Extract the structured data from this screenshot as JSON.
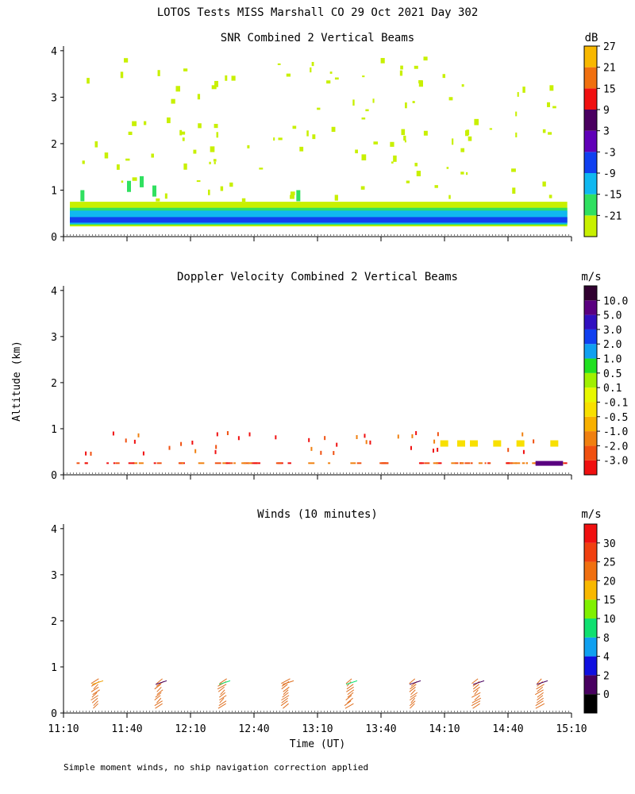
{
  "figure_title": "LOTOS Tests MISS Marshall CO  29 Oct 2021 Day 302",
  "shared_ylabel": "Altitude (km)",
  "shared_xlabel": "Time (UT)",
  "footer_note": "Simple moment winds, no ship navigation correction applied",
  "chart_data": [
    {
      "type": "heatmap",
      "title": "SNR Combined 2 Vertical Beams",
      "units": "dB",
      "x_ticks": [
        "11:10",
        "11:40",
        "12:10",
        "12:40",
        "13:10",
        "13:40",
        "14:10",
        "14:40",
        "15:10"
      ],
      "show_x_tick_labels": false,
      "xlim_minutes_utc": [
        670,
        910
      ],
      "ylim_km": [
        0,
        4.1
      ],
      "y_ticks": [
        0,
        1,
        2,
        3,
        4
      ],
      "colorbar": {
        "labels": [
          "-21",
          "-15",
          "-9",
          "-3",
          "3",
          "9",
          "15",
          "21",
          "27"
        ],
        "colors": [
          "#c8f000",
          "#30e060",
          "#10b8f0",
          "#1040f0",
          "#6000b8",
          "#4a0060",
          "#f01010",
          "#f07010",
          "#f8b800"
        ]
      },
      "layers": [
        {
          "band": "noise-top",
          "alt_km": [
            0.22,
            0.75
          ],
          "color": "#c8f000"
        },
        {
          "band": "mid",
          "alt_km": [
            0.25,
            0.62
          ],
          "color": "#30e060"
        },
        {
          "band": "strong",
          "alt_km": [
            0.27,
            0.56
          ],
          "color": "#10b8f0"
        },
        {
          "band": "peak",
          "alt_km": [
            0.3,
            0.42
          ],
          "color": "#1040f0"
        }
      ]
    },
    {
      "type": "heatmap",
      "title": "Doppler Velocity Combined 2 Vertical Beams",
      "units": "m/s",
      "x_ticks": [
        "11:10",
        "11:40",
        "12:10",
        "12:40",
        "13:10",
        "13:40",
        "14:10",
        "14:40",
        "15:10"
      ],
      "show_x_tick_labels": false,
      "xlim_minutes_utc": [
        670,
        910
      ],
      "ylim_km": [
        0,
        4.1
      ],
      "y_ticks": [
        0,
        1,
        2,
        3,
        4
      ],
      "colorbar": {
        "labels": [
          "-3.0",
          "-2.0",
          "-1.0",
          "-0.5",
          "-0.1",
          "0.1",
          "0.5",
          "1.0",
          "2.0",
          "3.0",
          "5.0",
          "10.0"
        ],
        "colors": [
          "#f01010",
          "#f05010",
          "#f08010",
          "#f8b000",
          "#f8e000",
          "#e8f800",
          "#a0f000",
          "#20e020",
          "#10a0f0",
          "#1040f0",
          "#3010c0",
          "#5a0080",
          "#300030"
        ]
      }
    },
    {
      "type": "scatter",
      "title": "Winds (10 minutes)",
      "units": "m/s",
      "x_ticks": [
        "11:10",
        "11:40",
        "12:10",
        "12:40",
        "13:10",
        "13:40",
        "14:10",
        "14:40",
        "15:10"
      ],
      "xlim_minutes_utc": [
        670,
        910
      ],
      "ylim_km": [
        0,
        4.1
      ],
      "y_ticks": [
        0,
        1,
        2,
        3,
        4
      ],
      "colorbar": {
        "labels": [
          "0",
          "2",
          "4",
          "8",
          "10",
          "15",
          "20",
          "25",
          "30"
        ],
        "colors": [
          "#000000",
          "#480060",
          "#1010e0",
          "#10a0f0",
          "#10e070",
          "#80f000",
          "#f8b800",
          "#f07010",
          "#f04010",
          "#f01010"
        ]
      },
      "profile_times_min": [
        685,
        715,
        745,
        775,
        805,
        835,
        865,
        895
      ],
      "profile_colors": [
        "#e07020",
        "#e07020",
        "#e07020",
        "#e07020",
        "#e07020",
        "#e07020",
        "#e07020",
        "#e07020"
      ],
      "top_barb_colors": [
        "#f0a000",
        "#480060",
        "#10e070",
        "#e07020",
        "#10e070",
        "#480060",
        "#480060",
        "#480060"
      ]
    }
  ],
  "colors": {
    "background": "#ffffff",
    "axes": "#000000",
    "noise_speckle": "#c8f000"
  }
}
